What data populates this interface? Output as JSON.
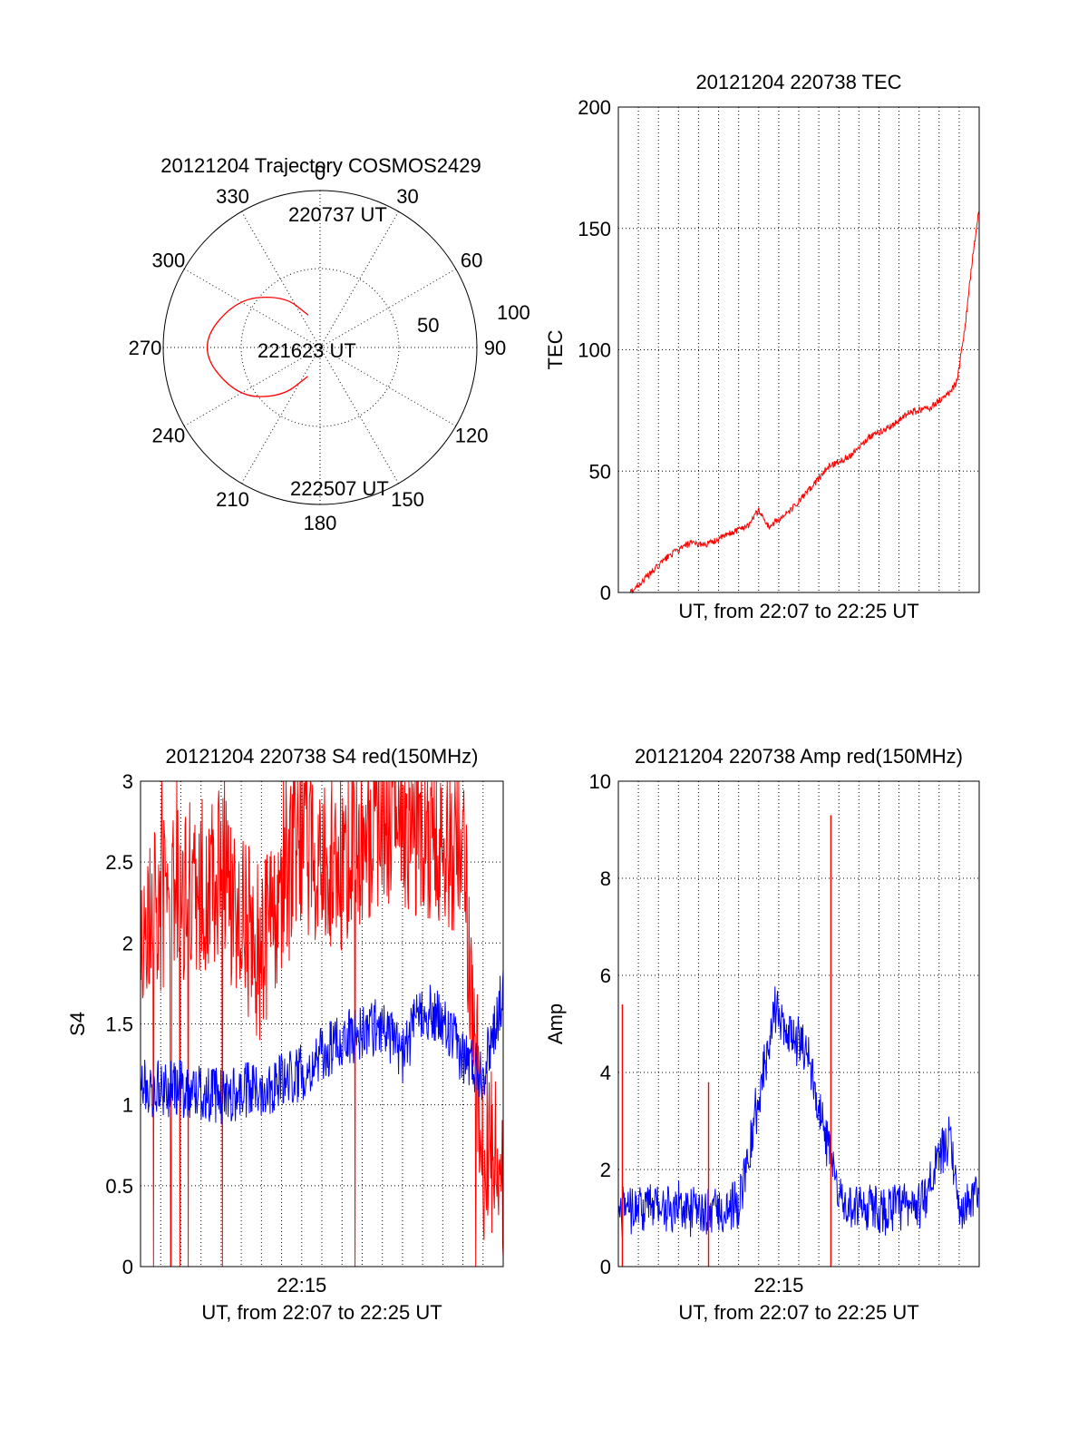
{
  "chart_data": [
    {
      "type": "polar",
      "title": "20121204 Trajectory COSMOS2429",
      "azimuth_labels": [
        "0",
        "30",
        "60",
        "90",
        "120",
        "150",
        "180",
        "210",
        "240",
        "270",
        "300",
        "330"
      ],
      "elevation_labels": [
        "50",
        "100"
      ],
      "series": [
        {
          "color": "#ff0000",
          "points": [
            {
              "az": 340,
              "el": 22
            },
            {
              "az": 325,
              "el": 40
            },
            {
              "az": 300,
              "el": 62
            },
            {
              "az": 270,
              "el": 78
            },
            {
              "az": 240,
              "el": 62
            },
            {
              "az": 218,
              "el": 40
            },
            {
              "az": 203,
              "el": 20
            }
          ]
        }
      ],
      "annotations": [
        "220737 UT",
        "221623 UT",
        "222507 UT"
      ]
    },
    {
      "type": "line",
      "title": "20121204 220738 TEC",
      "xlabel": "UT, from 22:07 to 22:25 UT",
      "ylabel": "TEC",
      "xlim": [
        0,
        18
      ],
      "ylim": [
        0,
        200
      ],
      "yticks": [
        "0",
        "50",
        "100",
        "150",
        "200"
      ],
      "grid": true,
      "series": [
        {
          "color": "#ff0000",
          "x": [
            0.6,
            1.5,
            2.5,
            3.5,
            4.5,
            5.5,
            6.5,
            7.0,
            7.5,
            8.5,
            9.5,
            10.5,
            11.5,
            12.5,
            13.5,
            14.5,
            15.5,
            16.5,
            16.9,
            17.3,
            17.7,
            18.0
          ],
          "y": [
            0,
            7,
            15,
            20,
            20,
            24,
            28,
            34,
            27,
            33,
            42,
            52,
            56,
            64,
            68,
            74,
            76,
            82,
            87,
            110,
            140,
            158
          ]
        }
      ]
    },
    {
      "type": "line",
      "title": "20121204 220738 S4 red(150MHz)",
      "xlabel": "UT, from 22:07 to 22:25 UT",
      "ylabel": "S4",
      "xticklabel": "22:15",
      "xlim": [
        0,
        18
      ],
      "ylim": [
        0,
        3
      ],
      "yticks": [
        "0",
        "0.5",
        "1",
        "1.5",
        "2",
        "2.5",
        "3"
      ],
      "grid": true,
      "series": [
        {
          "color": "#ff0000",
          "x": [
            0,
            2,
            4,
            6,
            7,
            8,
            10,
            12,
            14,
            16,
            17,
            18
          ],
          "y": [
            2.1,
            2.3,
            2.4,
            1.9,
            2.3,
            2.6,
            2.5,
            2.8,
            2.7,
            2.5,
            0.7,
            0.6
          ]
        },
        {
          "color": "#0000ff",
          "x": [
            0,
            2,
            4,
            6,
            8,
            10,
            12,
            13,
            14,
            15,
            16,
            17,
            18
          ],
          "y": [
            1.1,
            1.1,
            1.05,
            1.1,
            1.2,
            1.4,
            1.5,
            1.3,
            1.6,
            1.5,
            1.3,
            1.2,
            1.7
          ]
        }
      ]
    },
    {
      "type": "line",
      "title": "20121204 220738 Amp red(150MHz)",
      "xlabel": "UT, from 22:07 to 22:25 UT",
      "ylabel": "Amp",
      "xticklabel": "22:15",
      "xlim": [
        0,
        18
      ],
      "ylim": [
        0,
        10
      ],
      "yticks": [
        "0",
        "2",
        "4",
        "6",
        "8",
        "10"
      ],
      "grid": true,
      "series": [
        {
          "color": "#0000ff",
          "x": [
            0,
            2,
            4,
            6,
            7.8,
            9.5,
            11,
            13,
            15,
            16.5,
            17,
            18
          ],
          "y": [
            1.0,
            1.1,
            1.0,
            1.1,
            5.1,
            4.2,
            1.2,
            1.0,
            1.1,
            2.5,
            1.0,
            1.3
          ]
        },
        {
          "color": "#ff0000",
          "x": [
            0.2,
            4.5,
            10.6
          ],
          "y": [
            5.4,
            3.8,
            9.3
          ]
        }
      ]
    }
  ]
}
